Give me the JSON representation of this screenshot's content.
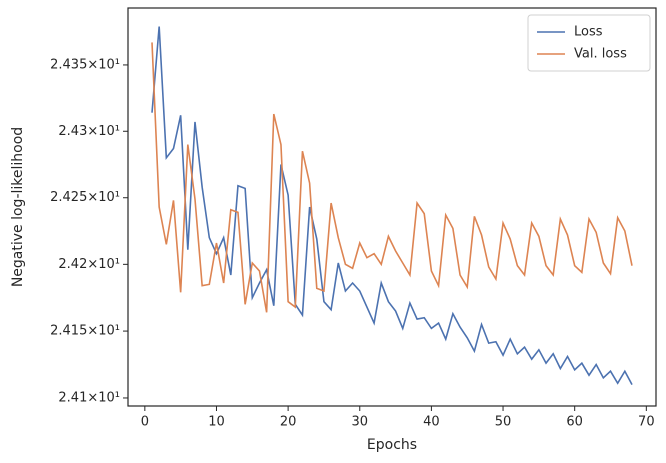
{
  "chart_data": {
    "type": "line",
    "xlabel": "Epochs",
    "ylabel": "Negative log-likelihood",
    "x": [
      1,
      2,
      3,
      4,
      5,
      6,
      7,
      8,
      9,
      10,
      11,
      12,
      13,
      14,
      15,
      16,
      17,
      18,
      19,
      20,
      21,
      22,
      23,
      24,
      25,
      26,
      27,
      28,
      29,
      30,
      31,
      32,
      33,
      34,
      35,
      36,
      37,
      38,
      39,
      40,
      41,
      42,
      43,
      44,
      45,
      46,
      47,
      48,
      49,
      50,
      51,
      52,
      53,
      54,
      55,
      56,
      57,
      58,
      59,
      60,
      61,
      62,
      63,
      64,
      65,
      66,
      67,
      68
    ],
    "series": [
      {
        "name": "Loss",
        "color": "#4c72b0",
        "values": [
          24.314,
          24.379,
          24.28,
          24.287,
          24.312,
          24.211,
          24.307,
          24.258,
          24.22,
          24.208,
          24.22,
          24.192,
          24.259,
          24.257,
          24.175,
          24.186,
          24.196,
          24.169,
          24.275,
          24.252,
          24.17,
          24.162,
          24.243,
          24.219,
          24.172,
          24.166,
          24.201,
          24.18,
          24.186,
          24.18,
          24.168,
          24.156,
          24.186,
          24.172,
          24.165,
          24.152,
          24.171,
          24.159,
          24.16,
          24.152,
          24.156,
          24.144,
          24.163,
          24.153,
          24.145,
          24.135,
          24.155,
          24.141,
          24.142,
          24.132,
          24.144,
          24.133,
          24.138,
          24.129,
          24.136,
          24.126,
          24.133,
          24.122,
          24.131,
          24.121,
          24.126,
          24.117,
          24.125,
          24.115,
          24.12,
          24.111,
          24.12,
          24.11
        ]
      },
      {
        "name": "Val. loss",
        "color": "#dd8452",
        "values": [
          24.367,
          24.243,
          24.215,
          24.248,
          24.179,
          24.29,
          24.249,
          24.184,
          24.185,
          24.216,
          24.186,
          24.241,
          24.239,
          24.17,
          24.201,
          24.195,
          24.164,
          24.313,
          24.29,
          24.172,
          24.168,
          24.285,
          24.261,
          24.182,
          24.18,
          24.246,
          24.22,
          24.2,
          24.197,
          24.216,
          24.205,
          24.208,
          24.2,
          24.221,
          24.21,
          24.201,
          24.192,
          24.246,
          24.238,
          24.195,
          24.184,
          24.237,
          24.227,
          24.192,
          24.183,
          24.236,
          24.222,
          24.198,
          24.189,
          24.231,
          24.219,
          24.199,
          24.192,
          24.231,
          24.221,
          24.199,
          24.192,
          24.234,
          24.222,
          24.199,
          24.194,
          24.234,
          24.224,
          24.201,
          24.193,
          24.235,
          24.225,
          24.199
        ]
      }
    ],
    "xlim": [
      -2.35,
      71.35
    ],
    "xticks": [
      0,
      10,
      20,
      30,
      40,
      50,
      60,
      70
    ],
    "ylim": [
      24.094,
      24.393
    ],
    "yscale": "log",
    "yticks": [
      {
        "value": 24.1,
        "label": "2.41×10¹"
      },
      {
        "value": 24.15,
        "label": "2.415×10¹"
      },
      {
        "value": 24.2,
        "label": "2.42×10¹"
      },
      {
        "value": 24.25,
        "label": "2.425×10¹"
      },
      {
        "value": 24.3,
        "label": "2.43×10¹"
      },
      {
        "value": 24.35,
        "label": "2.435×10¹"
      }
    ],
    "legend": "upper right"
  }
}
